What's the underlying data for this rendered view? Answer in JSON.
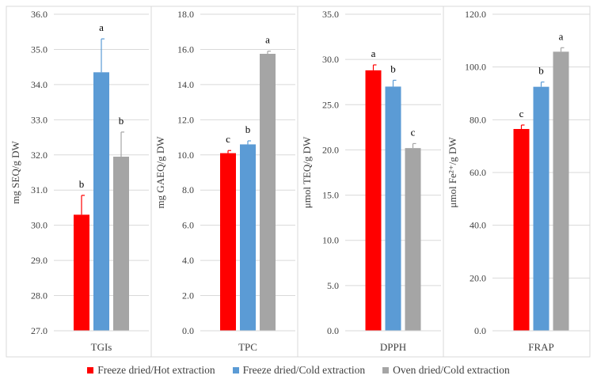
{
  "chart_data": [
    {
      "type": "bar",
      "category": "TGIs",
      "ylabel": "mg SEQ/g DW",
      "ylim": [
        27.0,
        36.0
      ],
      "yticks": [
        "27.0",
        "28.0",
        "29.0",
        "30.0",
        "31.0",
        "32.0",
        "33.0",
        "34.0",
        "35.0",
        "36.0"
      ],
      "values": [
        30.3,
        34.35,
        31.95
      ],
      "errors": [
        0.55,
        0.95,
        0.7
      ],
      "letters": [
        "b",
        "a",
        "b"
      ]
    },
    {
      "type": "bar",
      "category": "TPC",
      "ylabel": "mg GAEQ/g DW",
      "ylim": [
        0.0,
        18.0
      ],
      "yticks": [
        "0.0",
        "2.0",
        "4.0",
        "6.0",
        "8.0",
        "10.0",
        "12.0",
        "14.0",
        "16.0",
        "18.0"
      ],
      "values": [
        10.1,
        10.6,
        15.75
      ],
      "errors": [
        0.15,
        0.2,
        0.15
      ],
      "letters": [
        "c",
        "b",
        "a"
      ]
    },
    {
      "type": "bar",
      "category": "DPPH",
      "ylabel": "μmol TEQ/g DW",
      "ylim": [
        0.0,
        35.0
      ],
      "yticks": [
        "0.0",
        "5.0",
        "10.0",
        "15.0",
        "20.0",
        "25.0",
        "30.0",
        "35.0"
      ],
      "values": [
        28.8,
        27.0,
        20.2
      ],
      "errors": [
        0.6,
        0.7,
        0.5
      ],
      "letters": [
        "a",
        "b",
        "c"
      ]
    },
    {
      "type": "bar",
      "category": "FRAP",
      "ylabel": "μmol Fe²⁺/g DW",
      "ylim": [
        0.0,
        120.0
      ],
      "yticks": [
        "0.0",
        "20.0",
        "40.0",
        "60.0",
        "80.0",
        "100.0",
        "120.0"
      ],
      "values": [
        76.5,
        92.5,
        105.8
      ],
      "errors": [
        1.5,
        1.8,
        1.5
      ],
      "letters": [
        "c",
        "b",
        "a"
      ]
    }
  ],
  "legend": [
    {
      "label": "Freeze dried/Hot extraction",
      "color": "#ff0000"
    },
    {
      "label": "Freeze dried/Cold extraction",
      "color": "#5b9bd5"
    },
    {
      "label": "Oven dried/Cold extraction",
      "color": "#a5a5a5"
    }
  ]
}
